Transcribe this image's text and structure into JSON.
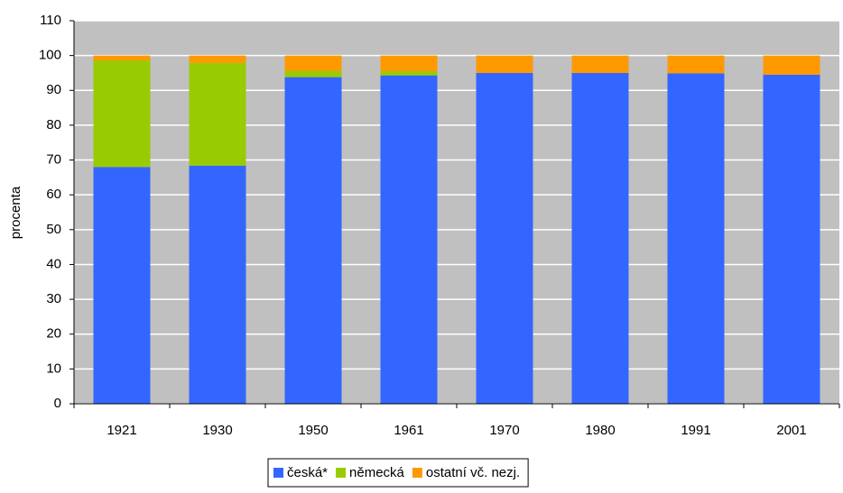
{
  "chart_data": {
    "type": "stacked-bar",
    "categories": [
      "1921",
      "1930",
      "1950",
      "1961",
      "1970",
      "1980",
      "1991",
      "2001"
    ],
    "series": [
      {
        "name": "česká*",
        "color": "#3366ff",
        "values": [
          68,
          68.4,
          93.8,
          94.3,
          95,
          95,
          94.9,
          94.5
        ]
      },
      {
        "name": "německá",
        "color": "#99cc00",
        "values": [
          30.6,
          29.5,
          1.8,
          1.2,
          0,
          0,
          0,
          0
        ]
      },
      {
        "name": "ostatní vč. nezj.",
        "color": "#ff9900",
        "values": [
          1.4,
          2.1,
          4.4,
          4.5,
          5,
          5,
          5.1,
          5.5
        ]
      }
    ],
    "y_label": "procenta",
    "ylim": [
      0,
      110
    ],
    "yticks": [
      0,
      10,
      20,
      30,
      40,
      50,
      60,
      70,
      80,
      90,
      100,
      110
    ],
    "grid": true,
    "legend": "bottom"
  }
}
